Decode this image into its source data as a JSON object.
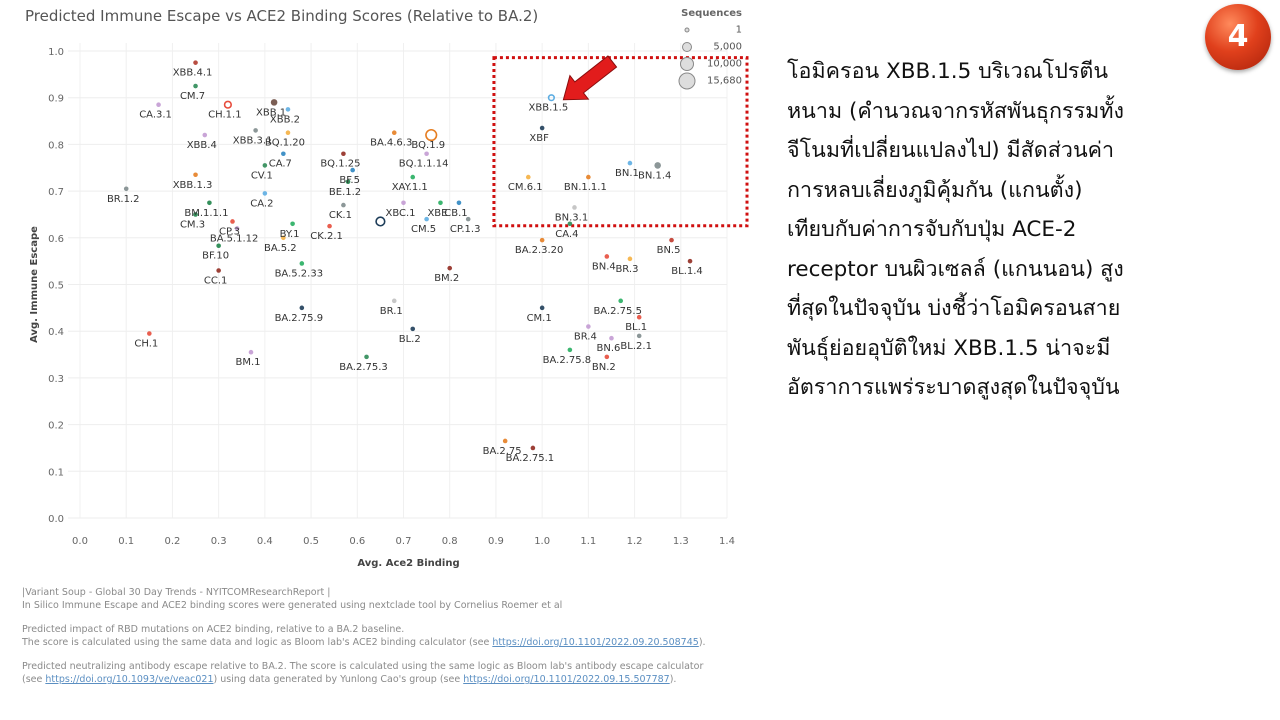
{
  "chart_data": {
    "type": "scatter",
    "title": "Predicted Immune Escape vs ACE2 Binding Scores (Relative to BA.2)",
    "xlabel": "Avg. Ace2 Binding",
    "ylabel": "Avg. Immune Escape",
    "xlim": [
      0.0,
      1.4
    ],
    "ylim": [
      0.0,
      1.0
    ],
    "xticks": [
      "0.0",
      "0.1",
      "0.2",
      "0.3",
      "0.4",
      "0.5",
      "0.6",
      "0.7",
      "0.8",
      "0.9",
      "1.0",
      "1.1",
      "1.2",
      "1.3",
      "1.4"
    ],
    "yticks": [
      "0.0",
      "0.1",
      "0.2",
      "0.3",
      "0.4",
      "0.5",
      "0.6",
      "0.7",
      "0.8",
      "0.9",
      "1.0"
    ],
    "grid": true,
    "legend": {
      "title": "Sequences",
      "entries": [
        "1",
        "5,000",
        "10,000",
        "15,680"
      ],
      "placement": "top-right"
    },
    "highlight_box": {
      "x": [
        0.9,
        1.45
      ],
      "y": [
        0.63,
        0.99
      ],
      "color": "#d01010",
      "style": "dotted"
    },
    "points": [
      {
        "label": "XBB.4.1",
        "x": 0.25,
        "y": 0.975,
        "color": "#b03a2e",
        "size": 3
      },
      {
        "label": "CM.7",
        "x": 0.25,
        "y": 0.925,
        "color": "#2e8b57",
        "size": 3
      },
      {
        "label": "CA.3.1",
        "x": 0.17,
        "y": 0.885,
        "color": "#c39bd3",
        "size": 3
      },
      {
        "label": "CH.1.1",
        "x": 0.32,
        "y": 0.885,
        "color": "#e74c3c",
        "size": 5,
        "hollow": true
      },
      {
        "label": "XBB.1",
        "x": 0.42,
        "y": 0.89,
        "color": "#6d4c41",
        "size": 5
      },
      {
        "label": "XBB.2",
        "x": 0.45,
        "y": 0.875,
        "color": "#5dade2",
        "size": 3
      },
      {
        "label": "XBB.3.1",
        "x": 0.38,
        "y": 0.83,
        "color": "#7f8c8d",
        "size": 3
      },
      {
        "label": "XBB.4",
        "x": 0.27,
        "y": 0.82,
        "color": "#c39bd3",
        "size": 3
      },
      {
        "label": "BQ.1.20",
        "x": 0.45,
        "y": 0.825,
        "color": "#f5b041",
        "size": 3
      },
      {
        "label": "BA.4.6.3",
        "x": 0.68,
        "y": 0.825,
        "color": "#e67e22",
        "size": 3
      },
      {
        "label": "BQ.1.9",
        "x": 0.76,
        "y": 0.82,
        "color": "#e67e22",
        "size": 9,
        "hollow": true
      },
      {
        "label": "CA.7",
        "x": 0.44,
        "y": 0.78,
        "color": "#2e86c1",
        "size": 3
      },
      {
        "label": "BQ.1.25",
        "x": 0.57,
        "y": 0.78,
        "color": "#922b21",
        "size": 3
      },
      {
        "label": "BQ.1.1.14",
        "x": 0.75,
        "y": 0.78,
        "color": "#c39bd3",
        "size": 3
      },
      {
        "label": "CV.1",
        "x": 0.4,
        "y": 0.755,
        "color": "#2e8b57",
        "size": 3
      },
      {
        "label": "BF.5",
        "x": 0.59,
        "y": 0.745,
        "color": "#2e86c1",
        "size": 3
      },
      {
        "label": "XAY.1.1",
        "x": 0.72,
        "y": 0.73,
        "color": "#27ae60",
        "size": 3
      },
      {
        "label": "BE.1.2",
        "x": 0.58,
        "y": 0.72,
        "color": "#1e8449",
        "size": 3
      },
      {
        "label": "XBB.1.3",
        "x": 0.25,
        "y": 0.735,
        "color": "#e67e22",
        "size": 3
      },
      {
        "label": "BR.1.2",
        "x": 0.1,
        "y": 0.705,
        "color": "#7f8c8d",
        "size": 3
      },
      {
        "label": "CA.2",
        "x": 0.4,
        "y": 0.695,
        "color": "#5dade2",
        "size": 3
      },
      {
        "label": "BM.1.1.1",
        "x": 0.28,
        "y": 0.675,
        "color": "#1e8449",
        "size": 3
      },
      {
        "label": "CK.1",
        "x": 0.57,
        "y": 0.67,
        "color": "#7f8c8d",
        "size": 3
      },
      {
        "label": "XBC.1",
        "x": 0.7,
        "y": 0.675,
        "color": "#c39bd3",
        "size": 3
      },
      {
        "label": "XBE",
        "x": 0.78,
        "y": 0.675,
        "color": "#27ae60",
        "size": 3
      },
      {
        "label": "CB.1",
        "x": 0.82,
        "y": 0.675,
        "color": "#2e86c1",
        "size": 3
      },
      {
        "label": "CM.3",
        "x": 0.25,
        "y": 0.65,
        "color": "#1e8449",
        "size": 3
      },
      {
        "label": "CP.3",
        "x": 0.33,
        "y": 0.635,
        "color": "#e74c3c",
        "size": 3
      },
      {
        "label": "BY.1",
        "x": 0.46,
        "y": 0.63,
        "color": "#27ae60",
        "size": 3
      },
      {
        "label": "CK.2.1",
        "x": 0.54,
        "y": 0.625,
        "color": "#e74c3c",
        "size": 3
      },
      {
        "label": "CM.5",
        "x": 0.75,
        "y": 0.64,
        "color": "#5dade2",
        "size": 3
      },
      {
        "label": "CP.1.3",
        "x": 0.84,
        "y": 0.64,
        "color": "#7f8c8d",
        "size": 3
      },
      {
        "label": "BA.5.1.12",
        "x": 0.34,
        "y": 0.62,
        "color": "#c39bd3",
        "size": 3
      },
      {
        "label": "BA.5.2",
        "x": 0.44,
        "y": 0.6,
        "color": "#f5b041",
        "size": 3
      },
      {
        "label": "BF.10",
        "x": 0.3,
        "y": 0.583,
        "color": "#1e8449",
        "size": 3
      },
      {
        "label": "CC.1",
        "x": 0.3,
        "y": 0.53,
        "color": "#922b21",
        "size": 3
      },
      {
        "label": "BA.5.2.33",
        "x": 0.48,
        "y": 0.545,
        "color": "#27ae60",
        "size": 3
      },
      {
        "label": "BA.2.3.20",
        "x": 1.0,
        "y": 0.595,
        "color": "#e67e22",
        "size": 3
      },
      {
        "label": "CA.4",
        "x": 1.06,
        "y": 0.63,
        "color": "#2e8b57",
        "size": 3
      },
      {
        "label": "BN.4",
        "x": 1.14,
        "y": 0.56,
        "color": "#e74c3c",
        "size": 3
      },
      {
        "label": "BR.3",
        "x": 1.19,
        "y": 0.555,
        "color": "#f5b041",
        "size": 3
      },
      {
        "label": "BN.5",
        "x": 1.28,
        "y": 0.595,
        "color": "#c0392b",
        "size": 3
      },
      {
        "label": "BL.1.4",
        "x": 1.32,
        "y": 0.55,
        "color": "#922b21",
        "size": 3
      },
      {
        "label": "BM.2",
        "x": 0.8,
        "y": 0.535,
        "color": "#922b21",
        "size": 3
      },
      {
        "label": "BR.1",
        "x": 0.68,
        "y": 0.465,
        "color": "#c0c0c0",
        "size": 3
      },
      {
        "label": "BA.2.75.9",
        "x": 0.48,
        "y": 0.45,
        "color": "#1e3d59",
        "size": 3
      },
      {
        "label": "CM.1",
        "x": 1.0,
        "y": 0.45,
        "color": "#1e3d59",
        "size": 3
      },
      {
        "label": "BA.2.75.5",
        "x": 1.17,
        "y": 0.465,
        "color": "#27ae60",
        "size": 3
      },
      {
        "label": "BL.1",
        "x": 1.21,
        "y": 0.43,
        "color": "#e74c3c",
        "size": 3
      },
      {
        "label": "BR.4",
        "x": 1.1,
        "y": 0.41,
        "color": "#c39bd3",
        "size": 3
      },
      {
        "label": "BL.2",
        "x": 0.72,
        "y": 0.405,
        "color": "#1e3d59",
        "size": 3
      },
      {
        "label": "BN.6",
        "x": 1.15,
        "y": 0.385,
        "color": "#c39bd3",
        "size": 3
      },
      {
        "label": "BL.2.1",
        "x": 1.21,
        "y": 0.39,
        "color": "#7f8c8d",
        "size": 3
      },
      {
        "label": "CH.1",
        "x": 0.15,
        "y": 0.395,
        "color": "#e74c3c",
        "size": 3
      },
      {
        "label": "BM.1",
        "x": 0.37,
        "y": 0.355,
        "color": "#c39bd3",
        "size": 3
      },
      {
        "label": "BA.2.75.3",
        "x": 0.62,
        "y": 0.345,
        "color": "#2e8b57",
        "size": 3
      },
      {
        "label": "BA.2.75.8",
        "x": 1.06,
        "y": 0.36,
        "color": "#27ae60",
        "size": 3
      },
      {
        "label": "BN.2",
        "x": 1.14,
        "y": 0.345,
        "color": "#e74c3c",
        "size": 3
      },
      {
        "label": "BA.2.75",
        "x": 0.92,
        "y": 0.165,
        "color": "#e67e22",
        "size": 3
      },
      {
        "label": "BA.2.75.1",
        "x": 0.98,
        "y": 0.15,
        "color": "#922b21",
        "size": 3
      },
      {
        "label": "XBB.1.5",
        "x": 1.02,
        "y": 0.9,
        "color": "#5dade2",
        "size": 4,
        "hollow": true
      },
      {
        "label": "XBF",
        "x": 1.0,
        "y": 0.835,
        "color": "#1e3d59",
        "size": 3
      },
      {
        "label": "BN.1",
        "x": 1.19,
        "y": 0.76,
        "color": "#5dade2",
        "size": 3
      },
      {
        "label": "BN.1.4",
        "x": 1.25,
        "y": 0.755,
        "color": "#7f8c8d",
        "size": 5
      },
      {
        "label": "CM.6.1",
        "x": 0.97,
        "y": 0.73,
        "color": "#f5b041",
        "size": 3
      },
      {
        "label": "BN.1.1.1",
        "x": 1.1,
        "y": 0.73,
        "color": "#e67e22",
        "size": 3
      },
      {
        "label": "BN.3.1",
        "x": 1.07,
        "y": 0.665,
        "color": "#c0c0c0",
        "size": 3
      },
      {
        "label": "",
        "x": 0.65,
        "y": 0.635,
        "color": "#1e3d59",
        "size": 7,
        "hollow": true
      }
    ]
  },
  "thai_text": [
    "โอมิครอน XBB.1.5 บริเวณโปรตีน",
    "หนาม (คำนวณจากรหัสพันธุกรรมทั้ง",
    "จีโนมที่เปลี่ยนแปลงไป) มีสัดส่วนค่า",
    "การหลบเลี่ยงภูมิคุ้มกัน (แกนตั้ง)",
    "เทียบกับค่าการจับกับปุ่ม ACE-2",
    "receptor บนผิวเซลล์ (แกนนอน) สูง",
    "ที่สุดในปัจจุบัน บ่งชี้ว่าโอมิครอนสาย",
    "พันธุ์ย่อยอุบัติใหม่ XBB.1.5 น่าจะมี",
    "อัตราการแพร่ระบาดสูงสุดในปัจจุบัน"
  ],
  "badge": "4",
  "footer": {
    "line1": "|Variant Soup - Global 30 Day Trends - NYITCOMResearchReport |",
    "line2": "In Silico Immune Escape and ACE2 binding scores were generated using nextclade tool by Cornelius Roemer et al",
    "line3": "Predicted impact of RBD mutations on ACE2 binding, relative to a BA.2 baseline.",
    "line4_pre": "The score is calculated using the same data and logic as Bloom lab's ACE2 binding calculator (see ",
    "line4_link": "https://doi.org/10.1101/2022.09.20.508745",
    "line4_post": ").",
    "line5": "Predicted neutralizing antibody escape relative to BA.2. The score is calculated using the same logic as Bloom lab's antibody escape calculator",
    "line6_pre": "(see ",
    "line6_link1": "https://doi.org/10.1093/ve/veac021",
    "line6_mid": ") using data generated by Yunlong Cao's group (see ",
    "line6_link2": "https://doi.org/10.1101/2022.09.15.507787",
    "line6_post": ")."
  }
}
